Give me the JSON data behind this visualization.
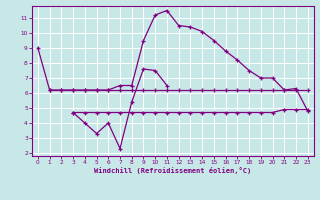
{
  "xlabel": "Windchill (Refroidissement éolien,°C)",
  "bg_color": "#c8e8e8",
  "grid_color": "#ffffff",
  "line_color": "#800080",
  "xlim": [
    -0.5,
    23.5
  ],
  "ylim": [
    1.8,
    11.8
  ],
  "xticks": [
    0,
    1,
    2,
    3,
    4,
    5,
    6,
    7,
    8,
    9,
    10,
    11,
    12,
    13,
    14,
    15,
    16,
    17,
    18,
    19,
    20,
    21,
    22,
    23
  ],
  "yticks": [
    2,
    3,
    4,
    5,
    6,
    7,
    8,
    9,
    10,
    11
  ],
  "line1_x": [
    0,
    1,
    2,
    3,
    4,
    5,
    6,
    7,
    8,
    9,
    10,
    11,
    12,
    13,
    14,
    15,
    16,
    17,
    18,
    19,
    20,
    21,
    22,
    23
  ],
  "line1_y": [
    9.0,
    6.2,
    6.2,
    6.2,
    6.2,
    6.2,
    6.2,
    6.5,
    6.5,
    9.5,
    11.2,
    11.5,
    10.5,
    10.4,
    10.1,
    9.5,
    8.8,
    8.2,
    7.5,
    7.0,
    7.0,
    6.2,
    6.3,
    4.8
  ],
  "line2_x": [
    1,
    2,
    3,
    4,
    5,
    6,
    7,
    8,
    9,
    10,
    11,
    12,
    13,
    14,
    15,
    16,
    17,
    18,
    19,
    20,
    21,
    22,
    23
  ],
  "line2_y": [
    6.2,
    6.2,
    6.2,
    6.2,
    6.2,
    6.2,
    6.2,
    6.2,
    6.2,
    6.2,
    6.2,
    6.2,
    6.2,
    6.2,
    6.2,
    6.2,
    6.2,
    6.2,
    6.2,
    6.2,
    6.2,
    6.2,
    6.2
  ],
  "line3_x": [
    3,
    4,
    5,
    6,
    7,
    8,
    9,
    10,
    11,
    12,
    13,
    14,
    15,
    16,
    17,
    18,
    19,
    20,
    21,
    22,
    23
  ],
  "line3_y": [
    4.7,
    4.7,
    4.7,
    4.7,
    4.7,
    4.7,
    4.7,
    4.7,
    4.7,
    4.7,
    4.7,
    4.7,
    4.7,
    4.7,
    4.7,
    4.7,
    4.7,
    4.7,
    4.9,
    4.9,
    4.9
  ],
  "line4_x": [
    3,
    4,
    5,
    6,
    7,
    8,
    9,
    10,
    11
  ],
  "line4_y": [
    4.7,
    4.0,
    3.3,
    4.0,
    2.3,
    5.4,
    7.6,
    7.5,
    6.5
  ]
}
